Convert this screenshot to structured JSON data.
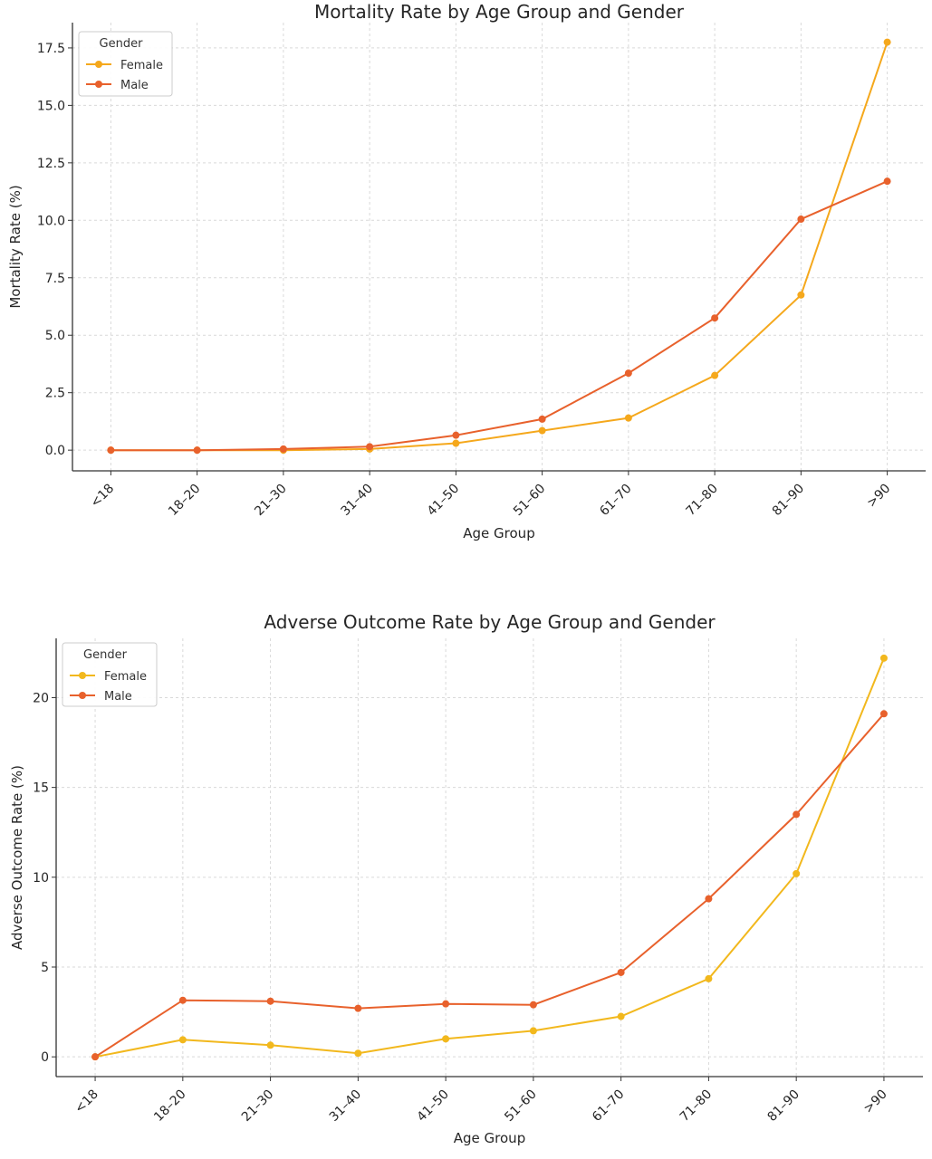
{
  "chart_data": [
    {
      "type": "line",
      "title": "Mortality Rate by Age Group and Gender",
      "xlabel": "Age Group",
      "ylabel": "Mortality Rate (%)",
      "categories": [
        "<18",
        "18–20",
        "21–30",
        "31–40",
        "41–50",
        "51–60",
        "61–70",
        "71–80",
        "81–90",
        ">90"
      ],
      "ylim": [
        -0.9,
        18.6
      ],
      "yticks": [
        0.0,
        2.5,
        5.0,
        7.5,
        10.0,
        12.5,
        15.0,
        17.5
      ],
      "ytick_labels": [
        "0.0",
        "2.5",
        "5.0",
        "7.5",
        "10.0",
        "12.5",
        "15.0",
        "17.5"
      ],
      "grid": true,
      "legend": {
        "title": "Gender",
        "position": "top-left"
      },
      "series": [
        {
          "name": "Female",
          "color": "#f5a81c",
          "values": [
            0.0,
            0.0,
            0.0,
            0.05,
            0.3,
            0.85,
            1.4,
            3.25,
            6.75,
            17.75
          ]
        },
        {
          "name": "Male",
          "color": "#e8612c",
          "values": [
            0.0,
            0.0,
            0.05,
            0.15,
            0.65,
            1.35,
            3.35,
            5.75,
            10.05,
            11.7
          ]
        }
      ]
    },
    {
      "type": "line",
      "title": "Adverse Outcome Rate by Age Group and Gender",
      "xlabel": "Age Group",
      "ylabel": "Adverse Outcome Rate (%)",
      "categories": [
        "<18",
        "18–20",
        "21–30",
        "31–40",
        "41–50",
        "51–60",
        "61–70",
        "71–80",
        "81–90",
        ">90"
      ],
      "ylim": [
        -1.1,
        23.3
      ],
      "yticks": [
        0,
        5,
        10,
        15,
        20
      ],
      "ytick_labels": [
        "0",
        "5",
        "10",
        "15",
        "20"
      ],
      "grid": true,
      "legend": {
        "title": "Gender",
        "position": "top-left"
      },
      "series": [
        {
          "name": "Female",
          "color": "#f2b81d",
          "values": [
            0.0,
            0.95,
            0.65,
            0.2,
            1.0,
            1.45,
            2.25,
            4.35,
            10.2,
            22.2
          ]
        },
        {
          "name": "Male",
          "color": "#e8612c",
          "values": [
            0.0,
            3.15,
            3.1,
            2.7,
            2.95,
            2.9,
            4.7,
            8.8,
            13.5,
            19.1
          ]
        }
      ]
    }
  ]
}
